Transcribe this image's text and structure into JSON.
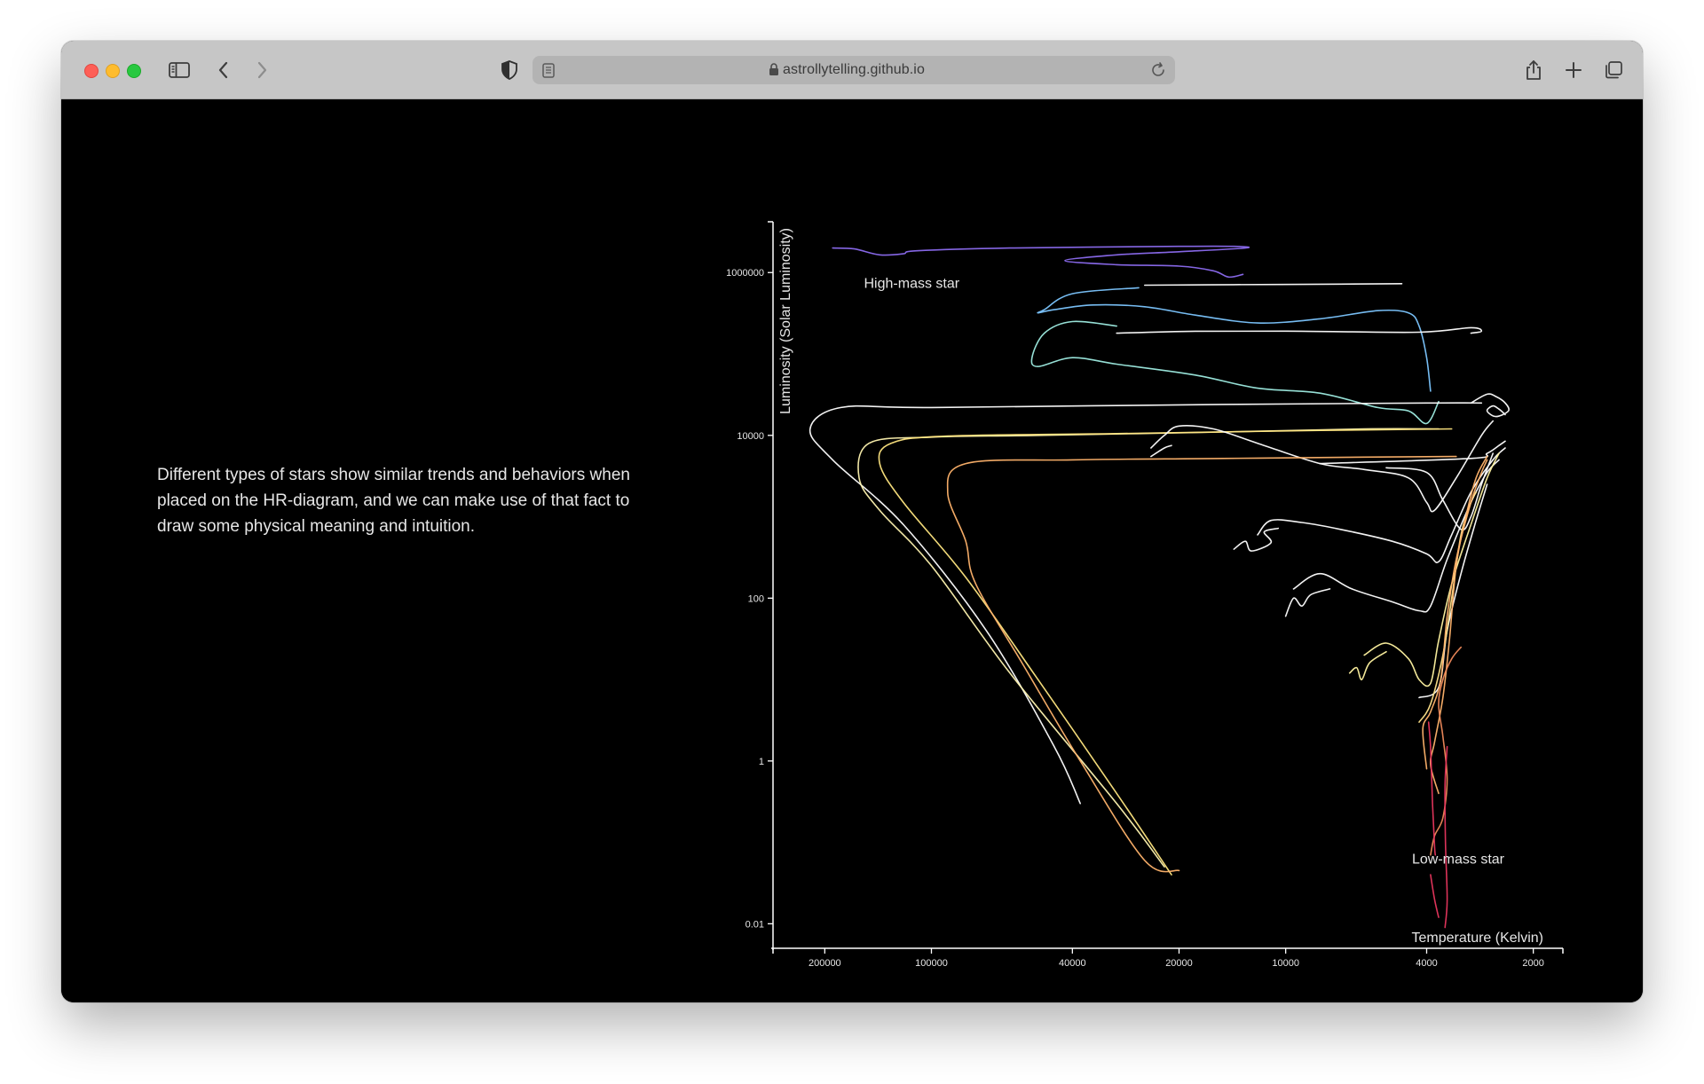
{
  "browser": {
    "url": "astrollytelling.github.io"
  },
  "page": {
    "caption": "Different types of stars show similar trends and behaviors when placed on the HR-diagram, and we can make use of that fact to draw some physical meaning and intuition."
  },
  "chart_data": {
    "type": "line",
    "xlabel": "Temperature (Kelvin)",
    "ylabel": "Luminosity (Solar Luminosity)",
    "x_scale": "log",
    "x_reversed": true,
    "y_scale": "log",
    "xlim": [
      280000,
      1650
    ],
    "ylim": [
      0.005,
      4000000
    ],
    "x_ticks": [
      {
        "value": 200000,
        "label": "200000"
      },
      {
        "value": 100000,
        "label": "100000"
      },
      {
        "value": 40000,
        "label": "40000"
      },
      {
        "value": 20000,
        "label": "20000"
      },
      {
        "value": 10000,
        "label": "10000"
      },
      {
        "value": 4000,
        "label": "4000"
      },
      {
        "value": 2000,
        "label": "2000"
      }
    ],
    "y_ticks": [
      {
        "value": 0.01,
        "label": "0.01"
      },
      {
        "value": 1,
        "label": "1"
      },
      {
        "value": 100,
        "label": "100"
      },
      {
        "value": 10000,
        "label": "10000"
      },
      {
        "value": 1000000,
        "label": "1000000"
      }
    ],
    "annotations": [
      {
        "text": "High-mass star",
        "x": 155000,
        "y": 650000
      },
      {
        "text": "Low-mass star",
        "x": 4400,
        "y": 0.055
      }
    ],
    "grid": false,
    "legend": "none",
    "colors": {
      "background": "#000000",
      "axis": "#ffffff",
      "text": "#e6e6e6"
    },
    "series": [
      {
        "color": "#8c6cf0",
        "points": [
          [
            190000,
            2000000
          ],
          [
            165000,
            1950000
          ],
          [
            140000,
            1650000
          ],
          [
            120000,
            1700000
          ],
          [
            110000,
            1850000
          ],
          [
            60000,
            2000000
          ],
          [
            20000,
            2100000
          ],
          [
            14000,
            2100000
          ],
          [
            13000,
            2000000
          ],
          [
            20000,
            1800000
          ],
          [
            30000,
            1650000
          ],
          [
            42000,
            1400000
          ],
          [
            30000,
            1250000
          ],
          [
            20000,
            1200000
          ],
          [
            16000,
            1050000
          ],
          [
            14500,
            880000
          ],
          [
            13200,
            950000
          ]
        ]
      },
      {
        "color": "#7cc6ff",
        "points": [
          [
            26000,
            650000
          ],
          [
            40000,
            550000
          ],
          [
            48000,
            350000
          ],
          [
            50000,
            320000
          ],
          [
            45000,
            350000
          ],
          [
            35000,
            400000
          ],
          [
            25000,
            380000
          ],
          [
            18000,
            300000
          ],
          [
            12000,
            240000
          ],
          [
            8000,
            270000
          ],
          [
            5500,
            340000
          ],
          [
            4500,
            320000
          ],
          [
            4200,
            220000
          ],
          [
            4000,
            90000
          ],
          [
            3900,
            35000
          ]
        ]
      },
      {
        "color": "#ffffff",
        "points": [
          [
            25000,
            700000
          ],
          [
            14000,
            710000
          ],
          [
            7000,
            720000
          ],
          [
            4700,
            730000
          ]
        ]
      },
      {
        "color": "#9eece2",
        "points": [
          [
            30000,
            220000
          ],
          [
            40000,
            250000
          ],
          [
            48000,
            180000
          ],
          [
            52000,
            90000
          ],
          [
            50000,
            70000
          ],
          [
            40000,
            90000
          ],
          [
            30000,
            75000
          ],
          [
            18000,
            55000
          ],
          [
            12000,
            38000
          ],
          [
            8000,
            33000
          ],
          [
            5500,
            22000
          ],
          [
            4500,
            20000
          ],
          [
            4000,
            14000
          ],
          [
            3700,
            26000
          ]
        ]
      },
      {
        "color": "#ffffff",
        "points": [
          [
            30000,
            180000
          ],
          [
            18000,
            190000
          ],
          [
            9000,
            190000
          ],
          [
            4200,
            185000
          ],
          [
            3000,
            210000
          ],
          [
            2800,
            190000
          ],
          [
            3000,
            180000
          ]
        ]
      },
      {
        "color": "#ffffff",
        "points": [
          [
            2800,
            25000
          ],
          [
            4000,
            25000
          ],
          [
            15000,
            24000
          ],
          [
            100000,
            22000
          ],
          [
            180000,
            22000
          ],
          [
            220000,
            12000
          ],
          [
            190000,
            5000
          ],
          [
            120000,
            800
          ],
          [
            70000,
            40
          ],
          [
            45000,
            1.5
          ],
          [
            38000,
            0.3
          ]
        ]
      },
      {
        "color": "#ffffff",
        "points": [
          [
            3000,
            25000
          ],
          [
            2700,
            32000
          ],
          [
            2550,
            30000
          ],
          [
            2400,
            25000
          ],
          [
            2350,
            20000
          ],
          [
            2550,
            17000
          ],
          [
            2700,
            20000
          ],
          [
            2600,
            23000
          ],
          [
            2500,
            21000
          ],
          [
            2400,
            18000
          ]
        ]
      },
      {
        "color": "#fff4b0",
        "points": [
          [
            3700,
            12000
          ],
          [
            6000,
            12000
          ],
          [
            15000,
            11000
          ],
          [
            50000,
            10000
          ],
          [
            100000,
            9500
          ],
          [
            150000,
            8000
          ],
          [
            160000,
            3000
          ],
          [
            140000,
            1200
          ],
          [
            100000,
            250
          ],
          [
            60000,
            12
          ],
          [
            30000,
            0.3
          ],
          [
            22000,
            0.05
          ]
        ]
      },
      {
        "color": "#ffe680",
        "points": [
          [
            3400,
            12000
          ],
          [
            8000,
            11500
          ],
          [
            30000,
            10500
          ],
          [
            90000,
            9800
          ],
          [
            130000,
            8000
          ],
          [
            140000,
            4500
          ],
          [
            120000,
            1500
          ],
          [
            80000,
            180
          ],
          [
            50000,
            10
          ],
          [
            30000,
            0.4
          ],
          [
            21000,
            0.04
          ]
        ]
      },
      {
        "color": "#ffffff",
        "points": [
          [
            24000,
            7000
          ],
          [
            22000,
            10000
          ],
          [
            20000,
            13000
          ],
          [
            16000,
            12000
          ],
          [
            12000,
            8000
          ],
          [
            8000,
            4500
          ],
          [
            6000,
            3800
          ],
          [
            4500,
            3000
          ],
          [
            4000,
            1500
          ],
          [
            3800,
            1200
          ],
          [
            3300,
            3000
          ],
          [
            2800,
            10000
          ],
          [
            2600,
            15000
          ]
        ]
      },
      {
        "color": "#ffffff",
        "points": [
          [
            24000,
            5500
          ],
          [
            22000,
            7000
          ],
          [
            21000,
            7500
          ]
        ]
      },
      {
        "color": "#ffffff",
        "points": [
          [
            8000,
            4500
          ],
          [
            3000,
            5200
          ],
          [
            2700,
            6000
          ],
          [
            2500,
            7500
          ],
          [
            2400,
            8500
          ]
        ]
      },
      {
        "color": "#ffffff",
        "points": [
          [
            12000,
            600
          ],
          [
            11000,
            900
          ],
          [
            9000,
            850
          ],
          [
            7000,
            700
          ],
          [
            5000,
            500
          ],
          [
            4000,
            350
          ],
          [
            3700,
            280
          ],
          [
            3400,
            600
          ],
          [
            3000,
            2000
          ],
          [
            2600,
            5000
          ],
          [
            2400,
            7000
          ]
        ]
      },
      {
        "color": "#ffffff",
        "points": [
          [
            14000,
            400
          ],
          [
            13000,
            500
          ],
          [
            12500,
            380
          ],
          [
            11000,
            480
          ],
          [
            11500,
            650
          ],
          [
            10500,
            720
          ]
        ]
      },
      {
        "color": "#ffffff",
        "points": [
          [
            9500,
            130
          ],
          [
            8000,
            200
          ],
          [
            6500,
            130
          ],
          [
            5000,
            90
          ],
          [
            4200,
            70
          ],
          [
            3900,
            80
          ],
          [
            3500,
            300
          ],
          [
            3000,
            1500
          ],
          [
            2700,
            3500
          ],
          [
            2500,
            5000
          ]
        ]
      },
      {
        "color": "#ffffff",
        "points": [
          [
            10000,
            60
          ],
          [
            9500,
            100
          ],
          [
            9000,
            80
          ],
          [
            8500,
            110
          ],
          [
            7500,
            130
          ]
        ]
      },
      {
        "color": "#ffffff",
        "points": [
          [
            5200,
            4000
          ],
          [
            4000,
            3500
          ],
          [
            3600,
            1600
          ],
          [
            3200,
            700
          ],
          [
            3000,
            1000
          ],
          [
            2800,
            2500
          ],
          [
            2600,
            6000
          ]
        ]
      },
      {
        "color": "#fff3a0",
        "points": [
          [
            6000,
            20
          ],
          [
            5200,
            28
          ],
          [
            4500,
            18
          ],
          [
            4200,
            10
          ],
          [
            3900,
            9
          ],
          [
            3700,
            30
          ],
          [
            3400,
            150
          ],
          [
            3000,
            800
          ],
          [
            2700,
            3000
          ],
          [
            2500,
            6000
          ]
        ]
      },
      {
        "color": "#fff3a0",
        "points": [
          [
            6600,
            12
          ],
          [
            6300,
            14
          ],
          [
            6100,
            10
          ],
          [
            5800,
            16
          ],
          [
            5200,
            22
          ]
        ]
      },
      {
        "color": "#ffffff",
        "points": [
          [
            4200,
            6
          ],
          [
            3700,
            8
          ],
          [
            3500,
            40
          ],
          [
            3200,
            200
          ],
          [
            2900,
            900
          ],
          [
            2700,
            2500
          ]
        ]
      },
      {
        "color": "#ffe38a",
        "points": [
          [
            4200,
            3
          ],
          [
            3900,
            5
          ],
          [
            3600,
            20
          ],
          [
            3400,
            100
          ],
          [
            3200,
            600
          ],
          [
            3000,
            1500
          ],
          [
            2900,
            2000
          ]
        ]
      },
      {
        "color": "#ffb36b",
        "points": [
          [
            4000,
            0.8
          ],
          [
            4100,
            2.5
          ],
          [
            3900,
            4
          ],
          [
            3650,
            10
          ],
          [
            3500,
            60
          ],
          [
            3300,
            300
          ],
          [
            3000,
            1500
          ],
          [
            2800,
            3500
          ],
          [
            2700,
            5000
          ]
        ]
      },
      {
        "color": "#ffb36b",
        "points": [
          [
            3700,
            0.4
          ],
          [
            3900,
            0.9
          ],
          [
            3800,
            1.7
          ],
          [
            3600,
            6
          ],
          [
            3450,
            30
          ],
          [
            3300,
            250
          ],
          [
            3100,
            1000
          ],
          [
            2900,
            3000
          ],
          [
            2700,
            5500
          ]
        ]
      },
      {
        "color": "#f08a5b",
        "points": [
          [
            3200,
            25
          ],
          [
            3400,
            18
          ],
          [
            3600,
            10
          ],
          [
            3700,
            5
          ],
          [
            3600,
            2
          ],
          [
            3500,
            0.6
          ],
          [
            3600,
            0.2
          ],
          [
            3800,
            0.12
          ],
          [
            3900,
            0.07
          ]
        ]
      },
      {
        "color": "#ffb36b",
        "points": [
          [
            3300,
            5500
          ],
          [
            6000,
            5400
          ],
          [
            15000,
            5200
          ],
          [
            40000,
            5000
          ],
          [
            80000,
            4500
          ],
          [
            90000,
            2000
          ],
          [
            80000,
            500
          ],
          [
            75000,
            150
          ],
          [
            55000,
            15
          ],
          [
            38000,
            1
          ],
          [
            25000,
            0.06
          ],
          [
            20000,
            0.045
          ]
        ]
      },
      {
        "color": "#e8365e",
        "points": [
          [
            3950,
            3
          ],
          [
            3900,
            1.5
          ],
          [
            3850,
            0.3
          ],
          [
            3800,
            0.09
          ],
          [
            3780,
            0.07
          ]
        ]
      },
      {
        "color": "#e8365e",
        "points": [
          [
            3500,
            1.5
          ],
          [
            3550,
            0.5
          ],
          [
            3540,
            0.1
          ],
          [
            3500,
            0.02
          ],
          [
            3550,
            0.009
          ]
        ]
      },
      {
        "color": "#e8365e",
        "points": [
          [
            3900,
            0.04
          ],
          [
            3800,
            0.02
          ],
          [
            3700,
            0.012
          ]
        ]
      }
    ]
  }
}
